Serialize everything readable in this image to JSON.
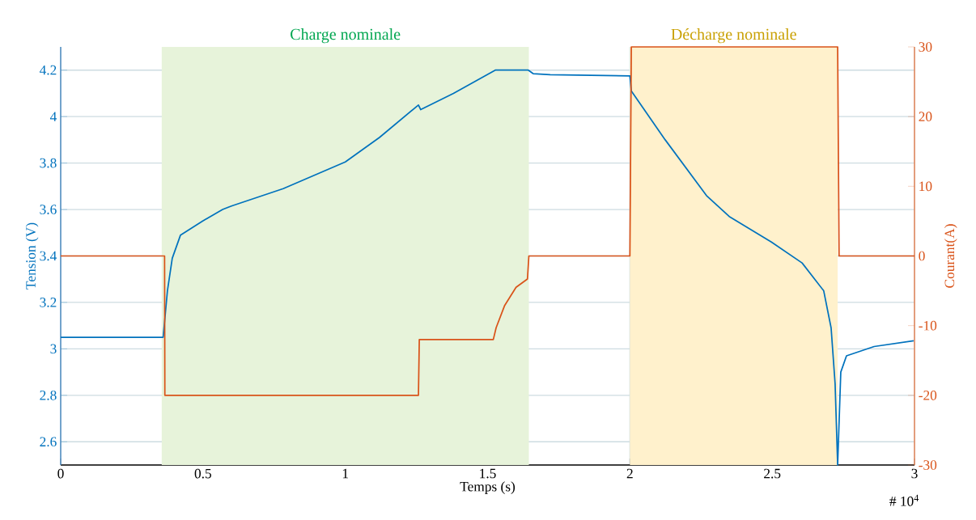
{
  "chart_data": {
    "type": "line",
    "xlabel": "Temps (s)",
    "ylabel": "Tension (V)",
    "y2label": "Courant(A)",
    "annotations": [
      "# 10$^{4}$"
    ],
    "xlim": [
      0,
      3
    ],
    "xticks": [
      0,
      0.5,
      1,
      1.5,
      2,
      2.5,
      3
    ],
    "ylim": [
      2.5,
      4.3
    ],
    "yticks": [
      2.6,
      2.8,
      3,
      3.2,
      3.4,
      3.6,
      3.8,
      4,
      4.2
    ],
    "y2lim": [
      -30,
      30
    ],
    "y2ticks": [
      -30,
      -20,
      -10,
      0,
      10,
      20,
      30
    ],
    "grid": true,
    "bands": [
      {
        "axis": "x",
        "from": 0.355,
        "to": 1.645,
        "label": "Charge nominale",
        "color": "#e7f3da"
      },
      {
        "axis": "x",
        "from": 2.0,
        "to": 2.73,
        "label": "Décharge nominale",
        "color": "#fff1cc"
      }
    ],
    "series": [
      {
        "color": "#0072bd",
        "x": [
          0,
          0.36,
          0.375,
          0.392,
          0.421,
          0.498,
          0.569,
          0.6,
          0.782,
          1.0,
          1.12,
          1.257,
          1.265,
          1.38,
          1.527,
          1.643,
          1.66,
          1.72,
          2.0,
          2.005,
          2.124,
          2.269,
          2.349,
          2.497,
          2.605,
          2.681,
          2.707,
          2.721,
          2.73,
          2.741,
          2.761,
          2.858,
          2.997
        ],
        "values": [
          3.05,
          3.05,
          3.25,
          3.39,
          3.49,
          3.55,
          3.6,
          3.615,
          3.69,
          3.805,
          3.91,
          4.05,
          4.03,
          4.1,
          4.2,
          4.2,
          4.185,
          4.18,
          4.175,
          4.11,
          3.9,
          3.66,
          3.57,
          3.46,
          3.37,
          3.25,
          3.09,
          2.85,
          2.5,
          2.9,
          2.97,
          3.01,
          3.035
        ]
      },
      {
        "color": "#d95319",
        "axis": "y2",
        "x": [
          0,
          0.365,
          0.366,
          1.257,
          1.26,
          1.52,
          1.53,
          1.56,
          1.6,
          1.64,
          1.645,
          2.0,
          2.005,
          2.73,
          2.735,
          3.0
        ],
        "values": [
          0,
          0,
          -20,
          -20,
          -12,
          -12,
          -10.3,
          -7.1,
          -4.5,
          -3.3,
          0,
          0,
          30,
          30,
          0,
          0
        ]
      }
    ]
  }
}
